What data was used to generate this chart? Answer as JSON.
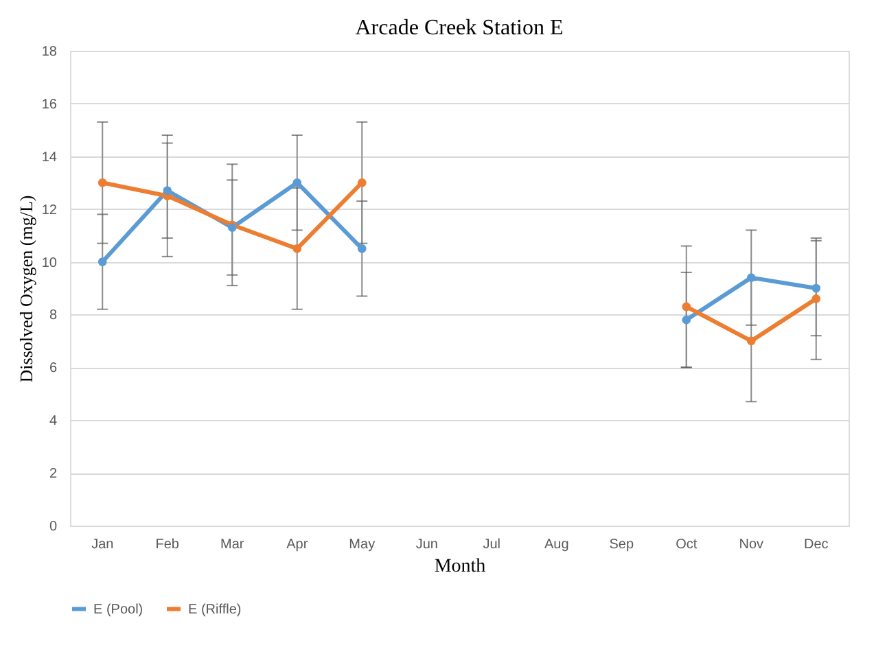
{
  "chart_data": {
    "type": "line",
    "title": "Arcade Creek Station E",
    "xlabel": "Month",
    "ylabel": "Dissolved  Oxygen  (mg/L)",
    "categories": [
      "Jan",
      "Feb",
      "Mar",
      "Apr",
      "May",
      "Jun",
      "Jul",
      "Aug",
      "Sep",
      "Oct",
      "Nov",
      "Dec"
    ],
    "series": [
      {
        "name": "E (Pool)",
        "color": "#5b9bd5",
        "values": [
          10,
          12.7,
          11.3,
          13,
          10.5,
          null,
          null,
          null,
          null,
          7.8,
          9.4,
          9.0
        ],
        "errors": [
          1.8,
          1.8,
          1.8,
          1.8,
          1.8,
          null,
          null,
          null,
          null,
          1.8,
          1.8,
          1.8
        ]
      },
      {
        "name": "E (Riffle)",
        "color": "#ed7d31",
        "values": [
          13,
          12.5,
          11.4,
          10.5,
          13,
          null,
          null,
          null,
          null,
          8.3,
          7.0,
          8.6
        ],
        "errors": [
          2.3,
          2.3,
          2.3,
          2.3,
          2.3,
          null,
          null,
          null,
          null,
          2.3,
          2.3,
          2.3
        ]
      }
    ],
    "ylim": [
      0,
      18
    ],
    "yticks": [
      0,
      2,
      4,
      6,
      8,
      10,
      12,
      14,
      16,
      18
    ],
    "grid": "y",
    "legend": "bottom",
    "marker": "circle",
    "line_style": "solid"
  }
}
